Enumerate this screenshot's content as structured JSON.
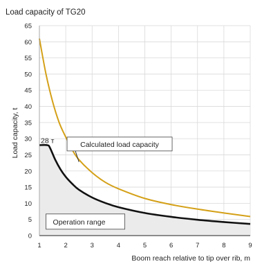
{
  "chart_data": {
    "type": "line",
    "title": "Load capacity of TG20",
    "xlabel": "Boom reach relative to tip over rib, m",
    "ylabel": "Load capacity, t",
    "xlim": [
      1,
      9
    ],
    "ylim": [
      0,
      65
    ],
    "x_ticks": [
      "1",
      "2",
      "3",
      "4",
      "5",
      "6",
      "7",
      "8",
      "9"
    ],
    "y_ticks": [
      "0",
      "5",
      "10",
      "15",
      "20",
      "25",
      "30",
      "35",
      "40",
      "45",
      "50",
      "55",
      "60",
      "65"
    ],
    "grid": true,
    "series": [
      {
        "color": "#d4a017",
        "x": [
          1.0,
          1.25,
          1.5,
          1.75,
          2.0,
          2.25,
          2.5,
          3.0,
          3.5,
          4.0,
          5.0,
          6.0,
          7.0,
          8.0,
          9.0
        ],
        "y": [
          61,
          50,
          41.5,
          35,
          30.5,
          26.5,
          23.5,
          19.5,
          16.5,
          14.5,
          11.5,
          9.6,
          8.2,
          7.0,
          5.9
        ]
      },
      {
        "color": "#111111",
        "x": [
          1.0,
          1.3,
          1.4,
          1.6,
          1.8,
          2.0,
          2.25,
          2.5,
          3.0,
          3.5,
          4.0,
          5.0,
          6.0,
          7.0,
          8.0,
          9.0
        ],
        "y": [
          28,
          28,
          27.2,
          23.5,
          20.5,
          18.2,
          16,
          14.2,
          11.8,
          10.1,
          8.8,
          7.0,
          5.8,
          4.9,
          4.2,
          3.6
        ]
      }
    ],
    "shaded_series_index": 1,
    "shade_color": "#ebebeb",
    "annotations": [
      {
        "text": "Calculated load capacity",
        "x": 2.5,
        "y": 22.8,
        "box_x": 2.05,
        "box_y": 30.5
      },
      {
        "text": "Operation range",
        "box_x": 1.25,
        "box_y": 6.7
      },
      {
        "text": "28 т",
        "x": 1.0,
        "y": 28
      }
    ]
  }
}
